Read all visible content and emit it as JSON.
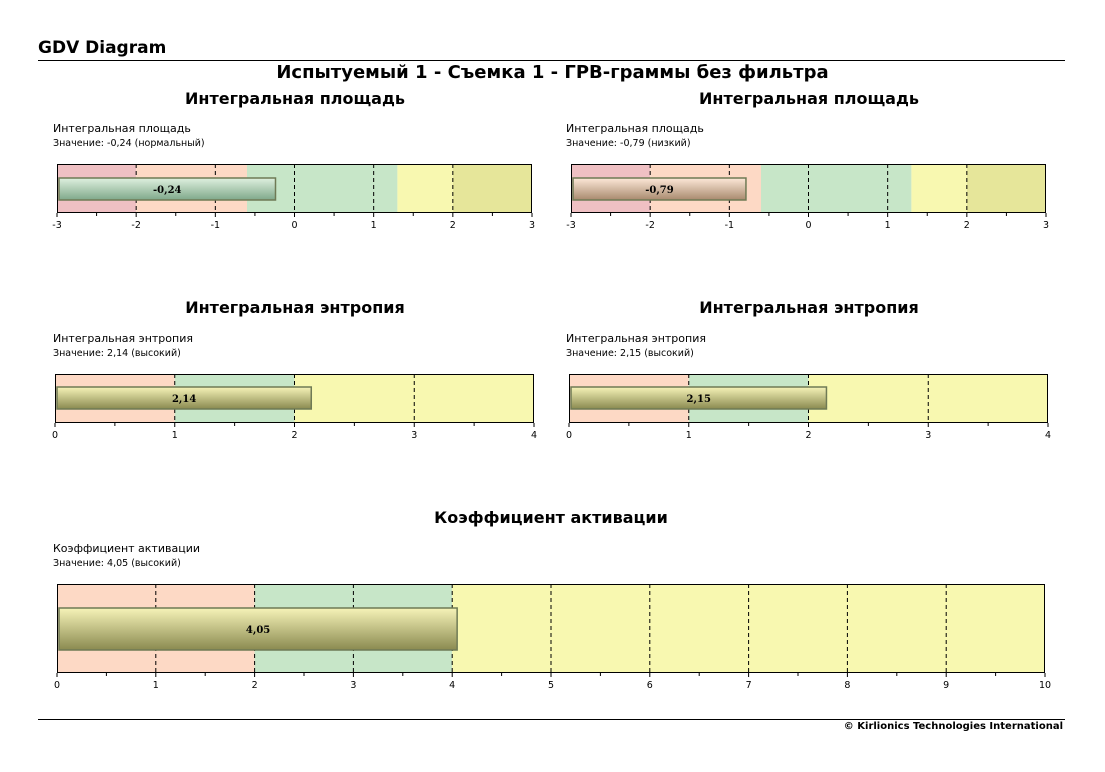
{
  "header": {
    "title": "GDV Diagram"
  },
  "main_title": "Испытуемый 1 - Съемка 1 - ГРВ-граммы без фильтра",
  "footer": {
    "copyright": "© Kirlionics Technologies International"
  },
  "colors": {
    "red": "#efc0c3",
    "peach": "#fdd9c5",
    "green": "#c7e6c8",
    "yellow": "#f8f8b0",
    "olive": "#e6e69a"
  },
  "chart_data": [
    {
      "type": "bar",
      "title": "Интегральная площадь",
      "label": "Интегральная площадь",
      "value_text": "Значение: -0,24 (нормальный)",
      "value": -0.24,
      "value_label": "-0,24",
      "xlim": [
        -3,
        3
      ],
      "ticks": [
        "-3",
        "-2",
        "-1",
        "0",
        "1",
        "2",
        "3"
      ],
      "tick_values": [
        -3,
        -2,
        -1,
        0,
        1,
        2,
        3
      ],
      "bar_color": "green",
      "zones": [
        {
          "from": -3,
          "to": -2,
          "color": "red"
        },
        {
          "from": -2,
          "to": -0.6,
          "color": "peach"
        },
        {
          "from": -0.6,
          "to": 1.3,
          "color": "green"
        },
        {
          "from": 1.3,
          "to": 2,
          "color": "yellow"
        },
        {
          "from": 2,
          "to": 3,
          "color": "olive"
        }
      ]
    },
    {
      "type": "bar",
      "title": "Интегральная площадь",
      "label": "Интегральная площадь",
      "value_text": "Значение: -0,79 (низкий)",
      "value": -0.79,
      "value_label": "-0,79",
      "xlim": [
        -3,
        3
      ],
      "ticks": [
        "-3",
        "-2",
        "-1",
        "0",
        "1",
        "2",
        "3"
      ],
      "tick_values": [
        -3,
        -2,
        -1,
        0,
        1,
        2,
        3
      ],
      "bar_color": "peach",
      "zones": [
        {
          "from": -3,
          "to": -2,
          "color": "red"
        },
        {
          "from": -2,
          "to": -0.6,
          "color": "peach"
        },
        {
          "from": -0.6,
          "to": 1.3,
          "color": "green"
        },
        {
          "from": 1.3,
          "to": 2,
          "color": "yellow"
        },
        {
          "from": 2,
          "to": 3,
          "color": "olive"
        }
      ]
    },
    {
      "type": "bar",
      "title": "Интегральная энтропия",
      "label": "Интегральная энтропия",
      "value_text": "Значение: 2,14 (высокий)",
      "value": 2.14,
      "value_label": "2,14",
      "xlim": [
        0,
        4
      ],
      "ticks": [
        "0",
        "1",
        "2",
        "3",
        "4"
      ],
      "tick_values": [
        0,
        1,
        2,
        3,
        4
      ],
      "bar_color": "yellow",
      "zones": [
        {
          "from": 0,
          "to": 1,
          "color": "peach"
        },
        {
          "from": 1,
          "to": 2,
          "color": "green"
        },
        {
          "from": 2,
          "to": 4,
          "color": "yellow"
        }
      ]
    },
    {
      "type": "bar",
      "title": "Интегральная энтропия",
      "label": "Интегральная энтропия",
      "value_text": "Значение: 2,15 (высокий)",
      "value": 2.15,
      "value_label": "2,15",
      "xlim": [
        0,
        4
      ],
      "ticks": [
        "0",
        "1",
        "2",
        "3",
        "4"
      ],
      "tick_values": [
        0,
        1,
        2,
        3,
        4
      ],
      "bar_color": "yellow",
      "zones": [
        {
          "from": 0,
          "to": 1,
          "color": "peach"
        },
        {
          "from": 1,
          "to": 2,
          "color": "green"
        },
        {
          "from": 2,
          "to": 4,
          "color": "yellow"
        }
      ]
    },
    {
      "type": "bar",
      "title": "Коэффициент активации",
      "label": "Коэффициент активации",
      "value_text": "Значение: 4,05 (высокий)",
      "value": 4.05,
      "value_label": "4,05",
      "xlim": [
        0,
        10
      ],
      "ticks": [
        "0",
        "1",
        "2",
        "3",
        "4",
        "5",
        "6",
        "7",
        "8",
        "9",
        "10"
      ],
      "tick_values": [
        0,
        1,
        2,
        3,
        4,
        5,
        6,
        7,
        8,
        9,
        10
      ],
      "bar_color": "yellow",
      "zones": [
        {
          "from": 0,
          "to": 2,
          "color": "peach"
        },
        {
          "from": 2,
          "to": 4,
          "color": "green"
        },
        {
          "from": 4,
          "to": 10,
          "color": "yellow"
        }
      ]
    }
  ]
}
